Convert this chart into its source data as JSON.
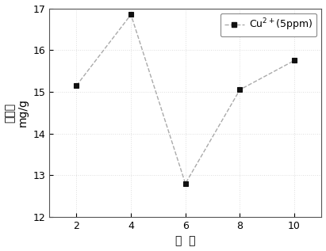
{
  "x": [
    2,
    4,
    6,
    8,
    10
  ],
  "y": [
    15.15,
    16.85,
    12.8,
    15.05,
    15.75
  ],
  "line_color": "#aaaaaa",
  "marker_color": "#111111",
  "marker": "s",
  "marker_size": 5,
  "line_style": "--",
  "line_width": 1.0,
  "xlabel": "配  比",
  "ylabel_cjk": "吸附量",
  "ylabel_unit": "mg/g",
  "xlim": [
    1,
    11
  ],
  "ylim": [
    12,
    17
  ],
  "xticks": [
    2,
    4,
    6,
    8,
    10
  ],
  "yticks": [
    12,
    13,
    14,
    15,
    16,
    17
  ],
  "legend_label_text": "Cu",
  "background_color": "#ffffff",
  "axis_fontsize": 10,
  "tick_fontsize": 9,
  "legend_fontsize": 9,
  "grid_color": "#c8c8c8",
  "grid_alpha": 0.6
}
